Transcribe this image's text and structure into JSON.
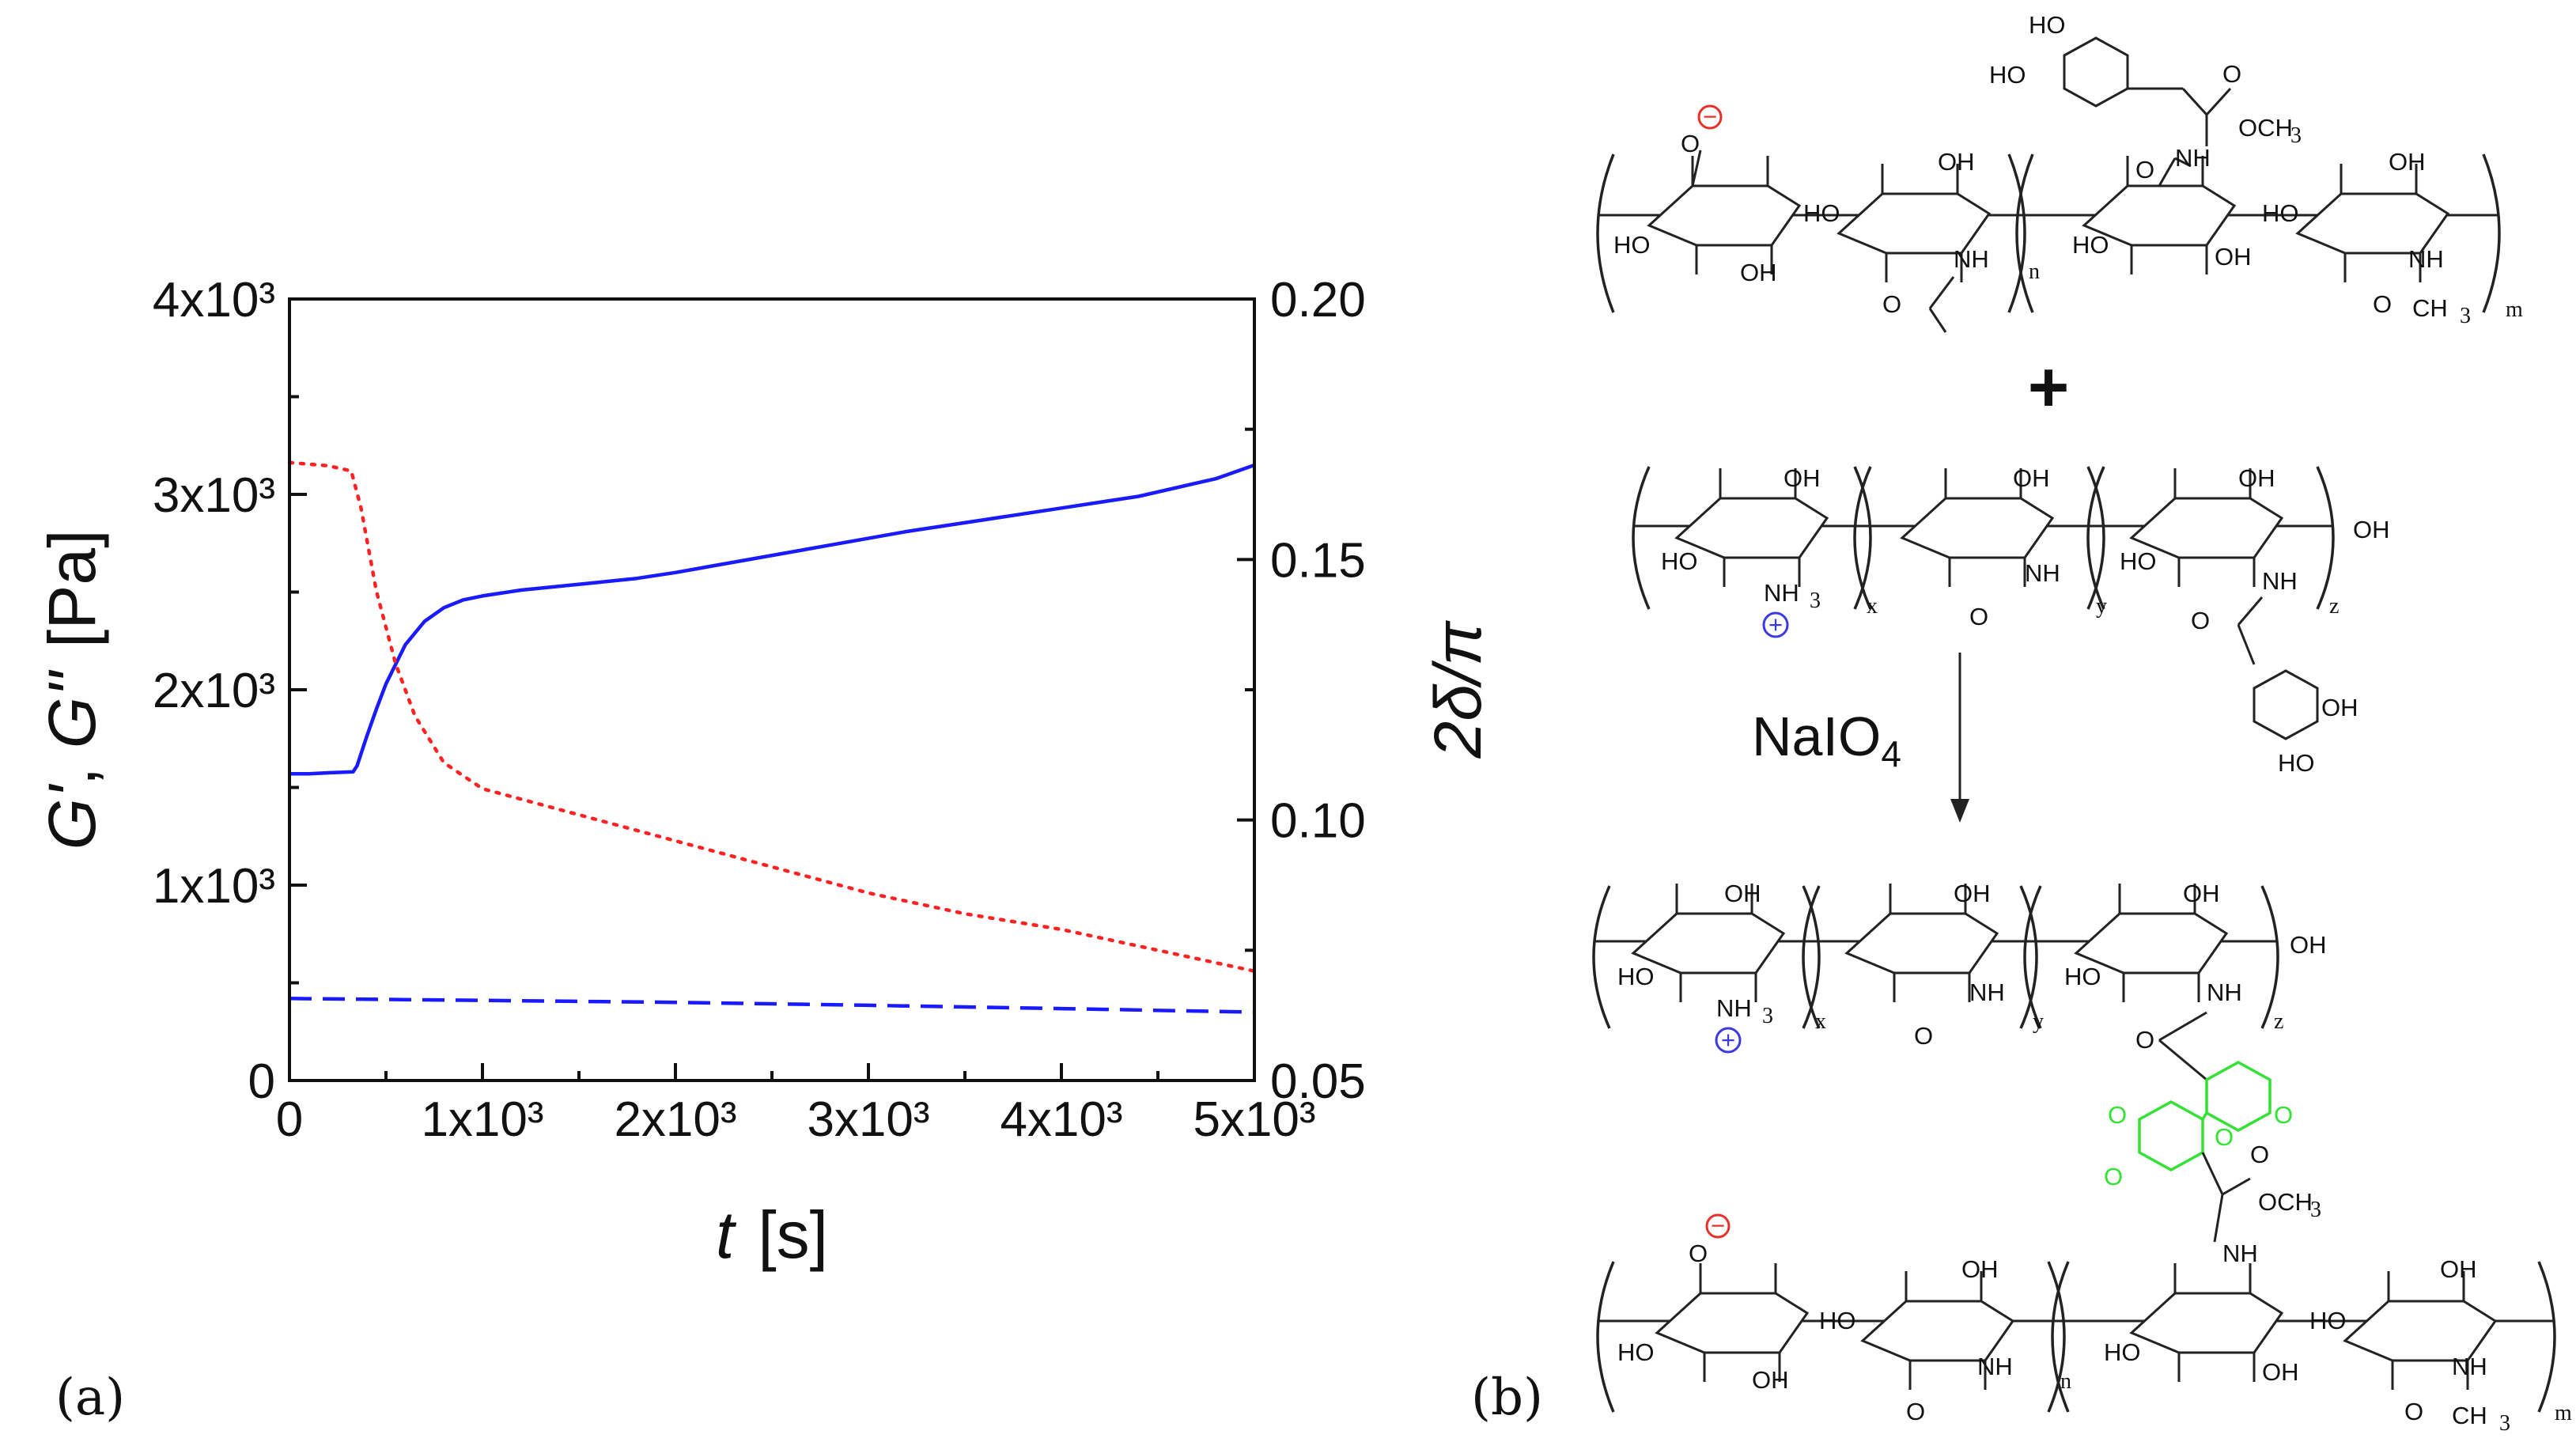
{
  "chart_data": {
    "type": "line",
    "panel_label": "(a)",
    "xlabel": {
      "italic": "t",
      "unit": "[s]"
    },
    "ylabel_left": {
      "g1": "G'",
      "sep": ", ",
      "g2": "G''",
      "unit": "[Pa]"
    },
    "ylabel_right": "2δ/π",
    "xlim": [
      0,
      5000
    ],
    "ylim_left": [
      0,
      4000
    ],
    "ylim_right": [
      0.05,
      0.2
    ],
    "x_ticks": [
      {
        "value": 0,
        "label": "0"
      },
      {
        "value": 1000,
        "label": "1x10³"
      },
      {
        "value": 2000,
        "label": "2x10³"
      },
      {
        "value": 3000,
        "label": "3x10³"
      },
      {
        "value": 4000,
        "label": "4x10³"
      },
      {
        "value": 5000,
        "label": "5x10³"
      }
    ],
    "y_left_ticks": [
      {
        "value": 0,
        "label": "0"
      },
      {
        "value": 1000,
        "label": "1x10³"
      },
      {
        "value": 2000,
        "label": "2x10³"
      },
      {
        "value": 3000,
        "label": "3x10³"
      },
      {
        "value": 4000,
        "label": "4x10³"
      }
    ],
    "y_right_ticks": [
      {
        "value": 0.05,
        "label": "0.05"
      },
      {
        "value": 0.1,
        "label": "0.10"
      },
      {
        "value": 0.15,
        "label": "0.15"
      },
      {
        "value": 0.2,
        "label": "0.20"
      }
    ],
    "series": [
      {
        "name": "G'",
        "axis": "left",
        "style": "solid",
        "color": "#1a1aff",
        "points": [
          [
            0,
            1570
          ],
          [
            100,
            1570
          ],
          [
            200,
            1575
          ],
          [
            330,
            1580
          ],
          [
            350,
            1610
          ],
          [
            400,
            1760
          ],
          [
            450,
            1900
          ],
          [
            500,
            2030
          ],
          [
            600,
            2230
          ],
          [
            700,
            2350
          ],
          [
            800,
            2420
          ],
          [
            900,
            2460
          ],
          [
            1000,
            2480
          ],
          [
            1200,
            2510
          ],
          [
            1400,
            2530
          ],
          [
            1600,
            2550
          ],
          [
            1800,
            2570
          ],
          [
            2000,
            2600
          ],
          [
            2400,
            2670
          ],
          [
            2800,
            2740
          ],
          [
            3200,
            2810
          ],
          [
            3600,
            2870
          ],
          [
            4000,
            2930
          ],
          [
            4400,
            2990
          ],
          [
            4800,
            3080
          ],
          [
            5000,
            3150
          ]
        ]
      },
      {
        "name": "G''",
        "axis": "left",
        "style": "dashed",
        "color": "#1a1aff",
        "points": [
          [
            0,
            420
          ],
          [
            1000,
            410
          ],
          [
            2000,
            400
          ],
          [
            3000,
            385
          ],
          [
            4000,
            368
          ],
          [
            5000,
            350
          ]
        ]
      },
      {
        "name": "2δ/π",
        "axis": "right",
        "style": "dotted",
        "color": "#ff2222",
        "points": [
          [
            0,
            0.1686
          ],
          [
            200,
            0.168
          ],
          [
            320,
            0.167
          ],
          [
            370,
            0.16
          ],
          [
            450,
            0.144
          ],
          [
            550,
            0.13
          ],
          [
            650,
            0.12
          ],
          [
            800,
            0.111
          ],
          [
            1000,
            0.106
          ],
          [
            1200,
            0.104
          ],
          [
            1500,
            0.101
          ],
          [
            2000,
            0.096
          ],
          [
            2500,
            0.091
          ],
          [
            3000,
            0.086
          ],
          [
            3500,
            0.082
          ],
          [
            4000,
            0.079
          ],
          [
            4500,
            0.075
          ],
          [
            5000,
            0.071
          ]
        ]
      }
    ]
  },
  "scheme": {
    "panel_label": "(b)",
    "plus": "+",
    "reagent_main": "NaIO",
    "reagent_sub": "4",
    "groups": {
      "OH": "OH",
      "HO": "HO",
      "NH": "NH",
      "O": "O",
      "NH3": "NH",
      "NH3_sub": "3",
      "OCH3": "OCH",
      "OCH3_sub": "3",
      "CH3": "CH",
      "CH3_sub": "3",
      "minus": "−",
      "plus": "+"
    },
    "repeat_subscripts": {
      "n": "n",
      "m": "m",
      "x": "x",
      "y": "y",
      "z": "z"
    },
    "colors": {
      "anion": "#e8302a",
      "cation": "#3a3ae0",
      "quinone": "#33e233",
      "bond": "#222222"
    }
  }
}
